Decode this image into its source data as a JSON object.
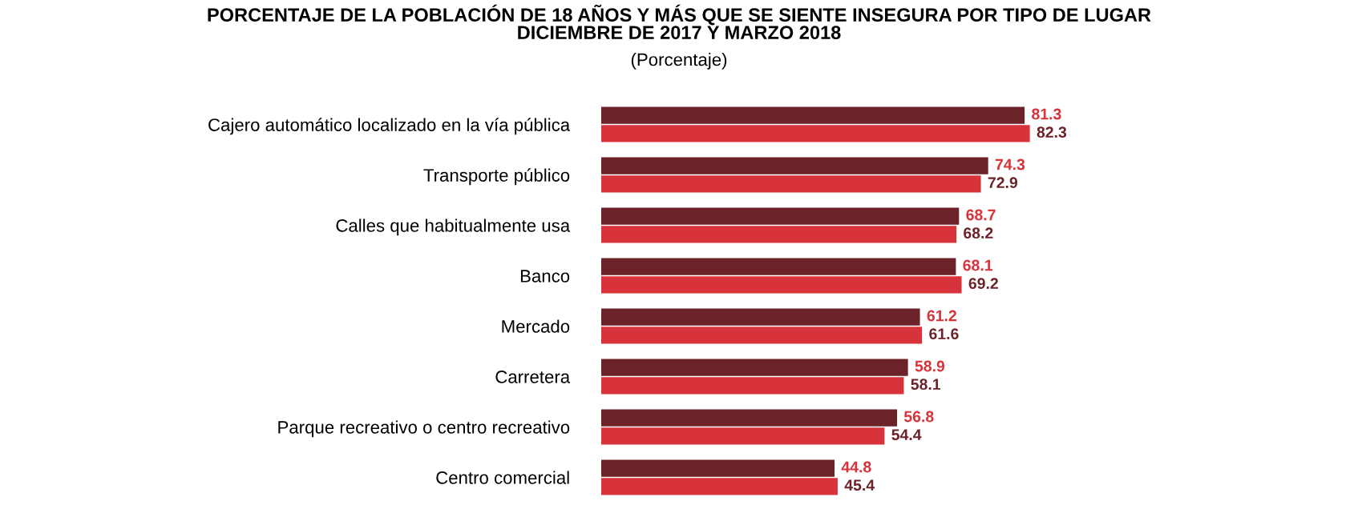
{
  "chart_data": {
    "type": "bar",
    "orientation": "horizontal",
    "title": "PORCENTAJE DE LA POBLACIÓN DE 18 AÑOS Y MÁS QUE SE SIENTE INSEGURA POR TIPO DE LUGAR\nDICIEMBRE DE 2017 Y MARZO 2018",
    "subtitle": "(Porcentaje)",
    "categories": [
      "Cajero automático localizado en la vía pública",
      "Transporte público",
      "Calles que habitualmente usa",
      "Banco",
      "Mercado",
      "Carretera",
      "Parque recreativo o centro recreativo",
      "Centro comercial"
    ],
    "series": [
      {
        "color": "#6b2228",
        "values": [
          81.3,
          74.3,
          68.7,
          68.1,
          61.2,
          58.9,
          56.8,
          44.8
        ]
      },
      {
        "color": "#d8333b",
        "values": [
          82.3,
          72.9,
          68.2,
          69.2,
          61.6,
          58.1,
          54.4,
          45.4
        ]
      }
    ],
    "data_labels": true,
    "grid": false,
    "legend": false
  }
}
